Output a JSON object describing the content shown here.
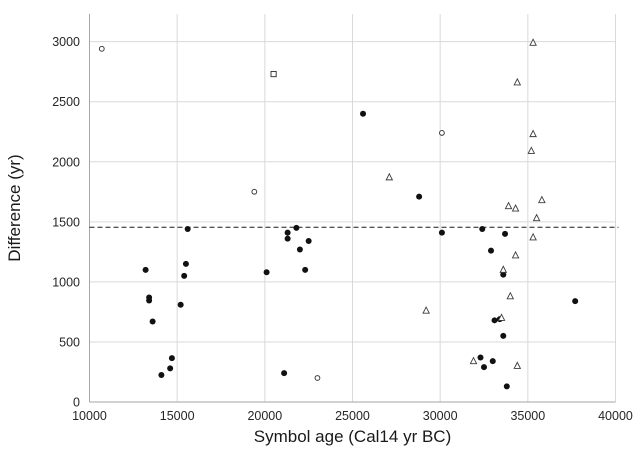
{
  "chart_data": {
    "type": "scatter",
    "title": "",
    "xlabel": "Symbol age (Cal14 yr BC)",
    "ylabel": "Difference (yr)",
    "xlim": [
      10000,
      40000
    ],
    "ylim": [
      0,
      3230
    ],
    "x_ticks": [
      "10000",
      "15000",
      "20000",
      "25000",
      "30000",
      "35000",
      "40000"
    ],
    "y_ticks": [
      "0",
      "500",
      "1000",
      "1500",
      "2000",
      "2500",
      "3000"
    ],
    "grid": true,
    "legend": "none",
    "reference_line": {
      "y": 1455,
      "style": "dashed",
      "color": "#1a1a1a"
    },
    "series": [
      {
        "name": "filled circles",
        "marker": "circle-filled",
        "color": "#111111",
        "points": [
          [
            13200,
            1100
          ],
          [
            13400,
            870
          ],
          [
            13400,
            845
          ],
          [
            13600,
            670
          ],
          [
            14100,
            225
          ],
          [
            14600,
            280
          ],
          [
            14700,
            365
          ],
          [
            15200,
            810
          ],
          [
            15400,
            1050
          ],
          [
            15500,
            1150
          ],
          [
            15600,
            1440
          ],
          [
            20100,
            1080
          ],
          [
            21100,
            240
          ],
          [
            21300,
            1410
          ],
          [
            21300,
            1360
          ],
          [
            21800,
            1450
          ],
          [
            22000,
            1270
          ],
          [
            22300,
            1100
          ],
          [
            22500,
            1340
          ],
          [
            25600,
            2400
          ],
          [
            28800,
            1710
          ],
          [
            30100,
            1410
          ],
          [
            32300,
            370
          ],
          [
            32400,
            1440
          ],
          [
            32500,
            290
          ],
          [
            32900,
            1260
          ],
          [
            33000,
            340
          ],
          [
            33100,
            680
          ],
          [
            33400,
            690
          ],
          [
            33600,
            1060
          ],
          [
            33600,
            550
          ],
          [
            33700,
            1400
          ],
          [
            33800,
            130
          ],
          [
            37700,
            840
          ]
        ]
      },
      {
        "name": "open circles",
        "marker": "circle-open",
        "color": "#3c3c3c",
        "points": [
          [
            10700,
            2940
          ],
          [
            19400,
            1750
          ],
          [
            23000,
            200
          ],
          [
            30100,
            2240
          ]
        ]
      },
      {
        "name": "open triangles",
        "marker": "triangle-open",
        "color": "#3c3c3c",
        "points": [
          [
            27100,
            1870
          ],
          [
            29200,
            760
          ],
          [
            31900,
            340
          ],
          [
            33500,
            700
          ],
          [
            33600,
            1100
          ],
          [
            33900,
            1630
          ],
          [
            34000,
            880
          ],
          [
            34300,
            1610
          ],
          [
            34300,
            1220
          ],
          [
            34400,
            2660
          ],
          [
            34400,
            300
          ],
          [
            35200,
            2090
          ],
          [
            35300,
            2990
          ],
          [
            35300,
            2230
          ],
          [
            35300,
            1370
          ],
          [
            35500,
            1530
          ],
          [
            35800,
            1680
          ]
        ]
      },
      {
        "name": "open squares",
        "marker": "square-open",
        "color": "#3c3c3c",
        "points": [
          [
            20500,
            2730
          ]
        ]
      }
    ]
  },
  "colors": {
    "background": "#ffffff",
    "gridline": "#d9d9d9",
    "axis": "#a6a6a6",
    "tick_text": "#262626"
  }
}
